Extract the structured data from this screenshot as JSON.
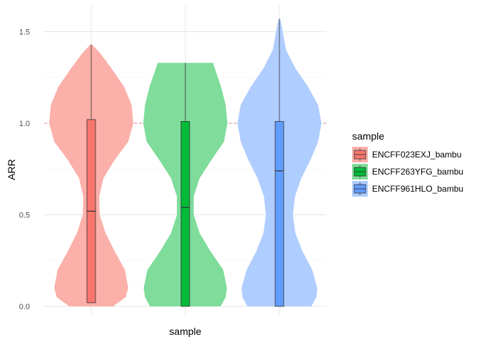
{
  "chart_data": {
    "type": "violin",
    "xlabel": "sample",
    "ylabel": "ARR",
    "ylim": [
      -0.03,
      1.6
    ],
    "yticks": [
      0.0,
      0.5,
      1.0,
      1.5
    ],
    "ytick_labels": [
      "0.0",
      "0.5",
      "1.0",
      "1.5"
    ],
    "reference_line": {
      "y": 1.0,
      "color": "#e0828f",
      "style": "dashed"
    },
    "grid": true,
    "legend": {
      "title": "sample",
      "placement": "right"
    },
    "series": [
      {
        "name": "ENCFF023EXJ_bambu",
        "color": "#f8766d",
        "fill_color": "#fbb0aa",
        "min": 0.02,
        "q1": 0.02,
        "median": 0.52,
        "q3": 1.02,
        "max": 1.43,
        "density": [
          [
            0.0,
            0.52
          ],
          [
            0.05,
            0.82
          ],
          [
            0.1,
            0.88
          ],
          [
            0.2,
            0.8
          ],
          [
            0.3,
            0.56
          ],
          [
            0.4,
            0.34
          ],
          [
            0.5,
            0.2
          ],
          [
            0.6,
            0.19
          ],
          [
            0.7,
            0.29
          ],
          [
            0.8,
            0.56
          ],
          [
            0.9,
            0.88
          ],
          [
            1.0,
            1.0
          ],
          [
            1.1,
            0.96
          ],
          [
            1.2,
            0.78
          ],
          [
            1.3,
            0.48
          ],
          [
            1.38,
            0.22
          ],
          [
            1.43,
            0.02
          ]
        ]
      },
      {
        "name": "ENCFF263YFG_bambu",
        "color": "#00ba38",
        "fill_color": "#7fdc9b",
        "min": 0.0,
        "q1": 0.0,
        "median": 0.54,
        "q3": 1.01,
        "max": 1.33,
        "density": [
          [
            0.0,
            0.84
          ],
          [
            0.05,
            0.96
          ],
          [
            0.1,
            0.99
          ],
          [
            0.2,
            0.9
          ],
          [
            0.3,
            0.6
          ],
          [
            0.4,
            0.34
          ],
          [
            0.5,
            0.2
          ],
          [
            0.6,
            0.2
          ],
          [
            0.7,
            0.34
          ],
          [
            0.8,
            0.62
          ],
          [
            0.9,
            0.92
          ],
          [
            1.0,
            1.0
          ],
          [
            1.1,
            0.96
          ],
          [
            1.2,
            0.85
          ],
          [
            1.3,
            0.7
          ],
          [
            1.33,
            0.66
          ]
        ]
      },
      {
        "name": "ENCFF961HLO_bambu",
        "color": "#619cff",
        "fill_color": "#b0cdff",
        "min": 0.0,
        "q1": 0.0,
        "median": 0.74,
        "q3": 1.01,
        "max": 1.57,
        "density": [
          [
            0.0,
            0.76
          ],
          [
            0.05,
            0.88
          ],
          [
            0.1,
            0.9
          ],
          [
            0.2,
            0.78
          ],
          [
            0.3,
            0.55
          ],
          [
            0.4,
            0.38
          ],
          [
            0.5,
            0.32
          ],
          [
            0.6,
            0.37
          ],
          [
            0.7,
            0.52
          ],
          [
            0.8,
            0.74
          ],
          [
            0.9,
            0.92
          ],
          [
            1.0,
            1.0
          ],
          [
            1.1,
            0.92
          ],
          [
            1.2,
            0.68
          ],
          [
            1.3,
            0.38
          ],
          [
            1.4,
            0.16
          ],
          [
            1.5,
            0.08
          ],
          [
            1.57,
            0.02
          ]
        ]
      }
    ]
  }
}
